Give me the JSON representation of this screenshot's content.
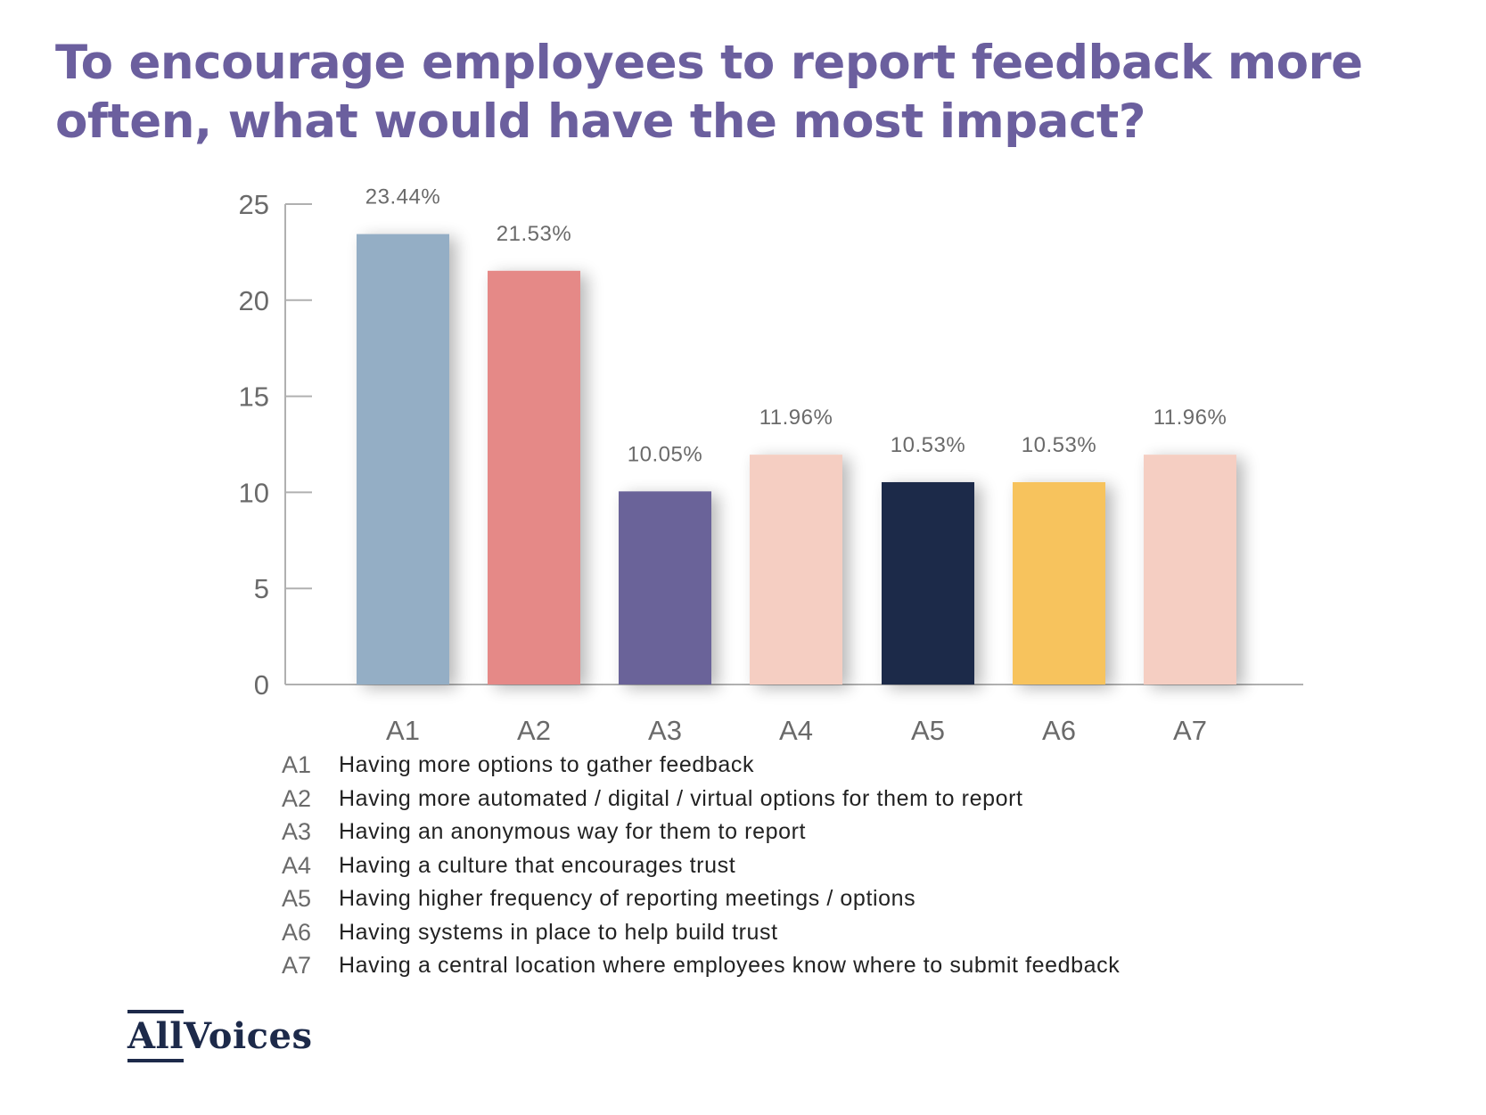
{
  "colors": {
    "title": "#6b5f9e",
    "axis": "#b0b0b0",
    "tick_text": "#6a6a6a",
    "value_label": "#6a6a6a",
    "logo": "#1d2a4a"
  },
  "chart_data": {
    "type": "bar",
    "title": "To encourage employees to report feedback more often, what would have the most impact?",
    "xlabel": "",
    "ylabel": "",
    "ylim": [
      0,
      25
    ],
    "yticks": [
      0,
      5,
      10,
      15,
      20,
      25
    ],
    "grid": false,
    "categories": [
      "A1",
      "A2",
      "A3",
      "A4",
      "A5",
      "A6",
      "A7"
    ],
    "values": [
      23.44,
      21.53,
      10.05,
      11.96,
      10.53,
      10.53,
      11.96
    ],
    "value_labels": [
      "23.44%",
      "21.53%",
      "10.05%",
      "11.96%",
      "10.53%",
      "10.53%",
      "11.96%"
    ],
    "bar_colors": [
      "#94aec5",
      "#e58987",
      "#6b6499",
      "#f5cec2",
      "#1d2a4a",
      "#f7c35d",
      "#f5cec2"
    ],
    "legend": [
      {
        "key": "A1",
        "text": "Having more options to gather feedback"
      },
      {
        "key": "A2",
        "text": "Having more automated / digital / virtual options for them to report"
      },
      {
        "key": "A3",
        "text": "Having an anonymous way for them to report"
      },
      {
        "key": "A4",
        "text": "Having a culture that encourages trust"
      },
      {
        "key": "A5",
        "text": "Having higher frequency of reporting meetings / options"
      },
      {
        "key": "A6",
        "text": "Having systems in place to help build trust"
      },
      {
        "key": "A7",
        "text": "Having a central location where employees know where to submit feedback"
      }
    ]
  },
  "logo": {
    "lead": "All",
    "rest": "Voices"
  }
}
